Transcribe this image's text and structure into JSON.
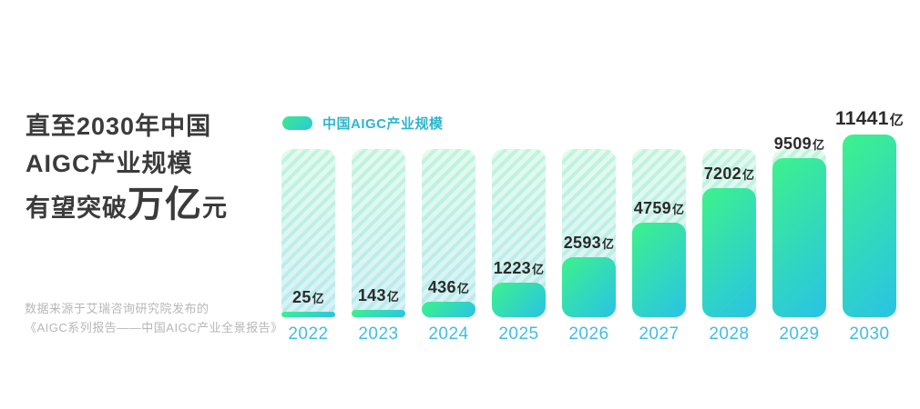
{
  "page": {
    "background": "#FFFFFF"
  },
  "title": {
    "line1": "直至2030年中国",
    "line2": "AIGC产业规模",
    "line3_prefix": "有望突破",
    "line3_highlight": "万亿",
    "line3_suffix": "元",
    "color": "#3B3B3B"
  },
  "source": {
    "line1": "数据来源于艾瑞咨询研究院发布的",
    "line2": "《AIGC系列报告——中国AIGC产业全景报告》",
    "color": "#B7B7B7"
  },
  "legend": {
    "label": "中国AIGC产业规模",
    "swatch_gradient": [
      "#3CE98C",
      "#2BC9DC"
    ],
    "text_color": "#2BB7CE"
  },
  "chart_data": {
    "type": "bar",
    "title": "中国AIGC产业规模",
    "categories": [
      "2022",
      "2023",
      "2024",
      "2025",
      "2026",
      "2027",
      "2028",
      "2029",
      "2030"
    ],
    "values": [
      25,
      143,
      436,
      1223,
      2593,
      4759,
      7202,
      9509,
      11441
    ],
    "unit": "亿",
    "xlabel": "",
    "ylabel": "",
    "ylim": [
      0,
      11441
    ],
    "grid": false,
    "legend_position": "top-left",
    "bar_color_gradient": [
      "#3DF28B",
      "#29C3E6"
    ],
    "track_color_gradient": [
      "#E3FBEC",
      "#D8F0FA"
    ],
    "track_stripe_color": "rgba(111,226,196,0.30)",
    "value_label_color": "#2B2B2B",
    "axis_label_color": "#41BEE3"
  }
}
